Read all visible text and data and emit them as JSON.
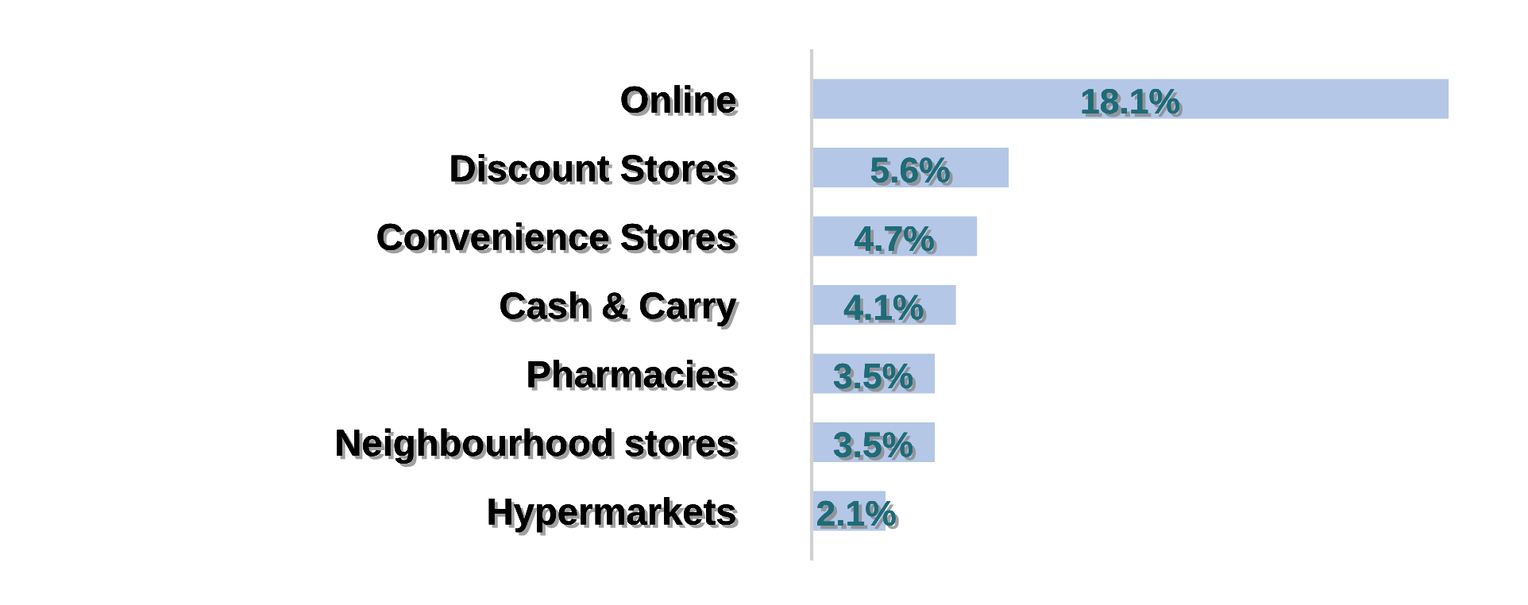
{
  "chart_data": {
    "type": "bar",
    "orientation": "horizontal",
    "categories": [
      "Online",
      "Discount Stores",
      "Convenience Stores",
      "Cash & Carry",
      "Pharmacies",
      "Neighbourhood stores",
      "Hypermarkets"
    ],
    "values": [
      18.1,
      5.6,
      4.7,
      4.1,
      3.5,
      3.5,
      2.1
    ],
    "value_labels": [
      "18.1%",
      "5.6%",
      "4.7%",
      "4.1%",
      "3.5%",
      "3.5%",
      "2.1%"
    ],
    "color": "#b4c7e7",
    "grid": false,
    "legend": false,
    "tick_labels": "y"
  }
}
